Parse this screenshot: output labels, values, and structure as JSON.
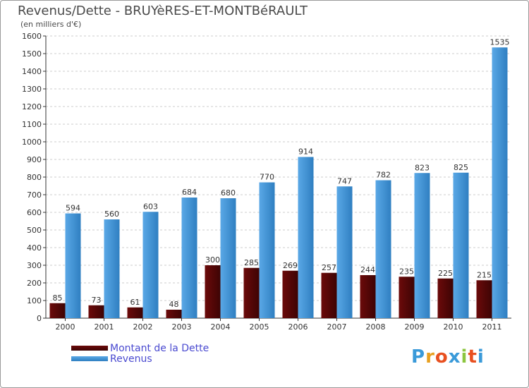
{
  "colors": {
    "debt": "#6b0a0a",
    "debt_dark": "#3e0404",
    "revenue": "#5aa8e6",
    "revenue_dark": "#2f7fc1"
  },
  "chart_data": {
    "type": "bar",
    "title": "Revenus/Dette - BRUYèRES-ET-MONTBéRAULT",
    "ylabel": "(en milliers d'€)",
    "categories": [
      "2000",
      "2001",
      "2002",
      "2003",
      "2004",
      "2005",
      "2006",
      "2007",
      "2008",
      "2009",
      "2010",
      "2011"
    ],
    "series": [
      {
        "name": "Montant de la Dette",
        "values": [
          85,
          73,
          61,
          48,
          300,
          285,
          269,
          257,
          244,
          235,
          225,
          215
        ]
      },
      {
        "name": "Revenus",
        "values": [
          594,
          560,
          603,
          684,
          680,
          770,
          914,
          747,
          782,
          823,
          825,
          1535
        ]
      }
    ],
    "ylim": [
      0,
      1600
    ],
    "yticks": [
      0,
      100,
      200,
      300,
      400,
      500,
      600,
      700,
      800,
      900,
      1000,
      1100,
      1200,
      1300,
      1400,
      1500,
      1600
    ],
    "grid": true,
    "legend": "bottom-left"
  },
  "branding": {
    "logo_letters": [
      "P",
      "r",
      "o",
      "x",
      "i",
      "t",
      "i"
    ],
    "logo_colors": [
      "#3a9ad9",
      "#e8a020",
      "#e85020",
      "#3a9ad9",
      "#8cc63f",
      "#e85020",
      "#3a9ad9"
    ]
  }
}
